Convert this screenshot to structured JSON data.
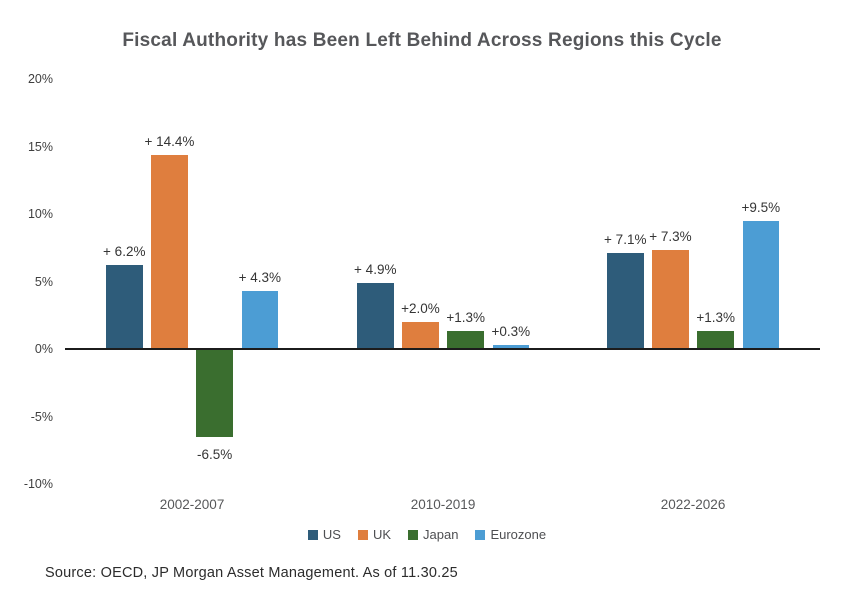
{
  "title": "Fiscal Authority has Been Left Behind Across Regions this Cycle",
  "source": "Source: OECD, JP Morgan Asset Management. As of 11.30.25",
  "chart_data": {
    "type": "bar",
    "title": "Fiscal Authority has Been Left Behind Across Regions this Cycle",
    "categories": [
      "2002-2007",
      "2010-2019",
      "2022-2026"
    ],
    "series": [
      {
        "name": "US",
        "color": "#2e5c7a",
        "values": [
          6.2,
          4.9,
          7.1
        ],
        "labels": [
          "+ 6.2%",
          "+ 4.9%",
          "+ 7.1%"
        ]
      },
      {
        "name": "UK",
        "color": "#df7e3e",
        "values": [
          14.4,
          2.0,
          7.3
        ],
        "labels": [
          "+ 14.4%",
          "+2.0%",
          "+ 7.3%"
        ]
      },
      {
        "name": "Japan",
        "color": "#3a6e2f",
        "values": [
          -6.5,
          1.3,
          1.3
        ],
        "labels": [
          "-6.5%",
          "+1.3%",
          "+1.3%"
        ]
      },
      {
        "name": "Eurozone",
        "color": "#4c9dd4",
        "values": [
          4.3,
          0.3,
          9.5
        ],
        "labels": [
          "+ 4.3%",
          "+0.3%",
          "+9.5%"
        ]
      }
    ],
    "y_axis": {
      "ticks": [
        "20%",
        "15%",
        "10%",
        "5%",
        "0%",
        "-5%",
        "-10%"
      ],
      "tick_values": [
        20,
        15,
        10,
        5,
        0,
        -5,
        -10
      ],
      "ylim": [
        -10,
        20
      ]
    },
    "xlabel": "",
    "ylabel": "",
    "grid": false,
    "legend_position": "bottom",
    "legend": [
      "US",
      "UK",
      "Japan",
      "Eurozone"
    ]
  }
}
